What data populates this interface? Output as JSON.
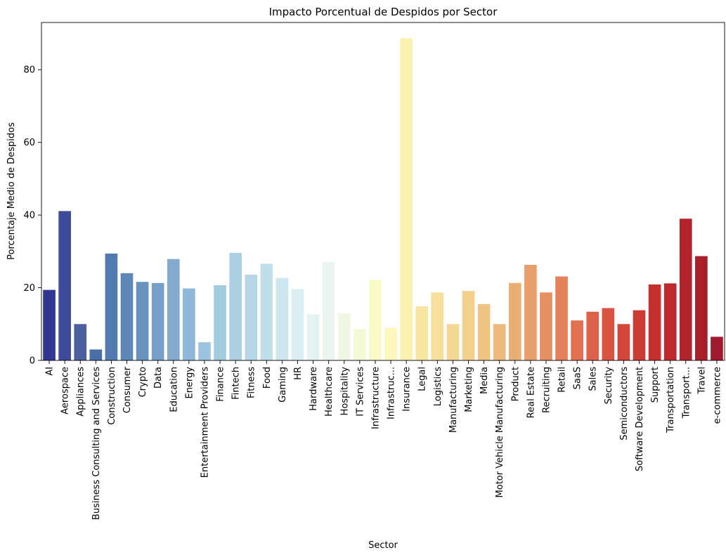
{
  "chart_data": {
    "type": "bar",
    "title": "Impacto Porcentual de Despidos por Sector",
    "xlabel": "Sector",
    "ylabel": "Porcentaje Medio de Despidos",
    "ylim": [
      0,
      93
    ],
    "yticks": [
      0,
      20,
      40,
      60,
      80
    ],
    "grid": false,
    "legend": "none",
    "palette": "RdYlBu_r",
    "categories": [
      "AI",
      "Aerospace",
      "Appliances",
      "Business Consulting and Services",
      "Construction",
      "Consumer",
      "Crypto",
      "Data",
      "Education",
      "Energy",
      "Entertainment Providers",
      "Finance",
      "Fintech",
      "Fitness",
      "Food",
      "Gaming",
      "HR",
      "Hardware",
      "Healthcare",
      "Hospitality",
      "IT Services",
      "Infrastructure",
      "Infrastruc...",
      "Insurance",
      "Legal",
      "Logistics",
      "Manufacturing",
      "Marketing",
      "Media",
      "Motor Vehicle Manufacturing",
      "Product",
      "Real Estate",
      "Recruiting",
      "Retail",
      "SaaS",
      "Sales",
      "Security",
      "Semiconductors",
      "Software Development",
      "Support",
      "Transportation",
      "Transport...",
      "Travel",
      "e-commerce"
    ],
    "values": [
      19.4,
      41.1,
      10.0,
      3.0,
      29.4,
      24.0,
      21.6,
      21.3,
      27.9,
      19.8,
      5.0,
      20.7,
      29.6,
      23.6,
      26.6,
      22.7,
      19.6,
      12.7,
      27.1,
      13.0,
      8.6,
      22.2,
      9.0,
      88.7,
      14.9,
      18.7,
      10.0,
      19.1,
      15.5,
      10.0,
      21.3,
      26.3,
      18.7,
      23.1,
      11.0,
      13.4,
      14.4,
      10.0,
      13.8,
      20.9,
      21.2,
      39.0,
      28.7,
      6.5
    ],
    "colors": [
      "#313695",
      "#3f4a9b",
      "#4c60a1",
      "#4a6ea7",
      "#5279b0",
      "#5d87b9",
      "#6893c0",
      "#779fc9",
      "#82abce",
      "#8fb8d8",
      "#9cc4de",
      "#a3cbe0",
      "#acd1e2",
      "#b6d8e6",
      "#c1dfe9",
      "#cce7f0",
      "#dbeef2",
      "#e3f3f3",
      "#eaf5ef",
      "#f0f7e4",
      "#f4f9d6",
      "#f9fac8",
      "#fbf7bd",
      "#fcf2b0",
      "#f8e7a3",
      "#f6e09c",
      "#f4d894",
      "#f2cf8b",
      "#efc583",
      "#ecba7b",
      "#eaae72",
      "#e89f6b",
      "#e68f62",
      "#e4805a",
      "#e27151",
      "#de6248",
      "#d85340",
      "#d24739",
      "#cc3b33",
      "#c5302f",
      "#bc2a2d",
      "#b3242c",
      "#a91e2b",
      "#9e1b2f"
    ]
  }
}
